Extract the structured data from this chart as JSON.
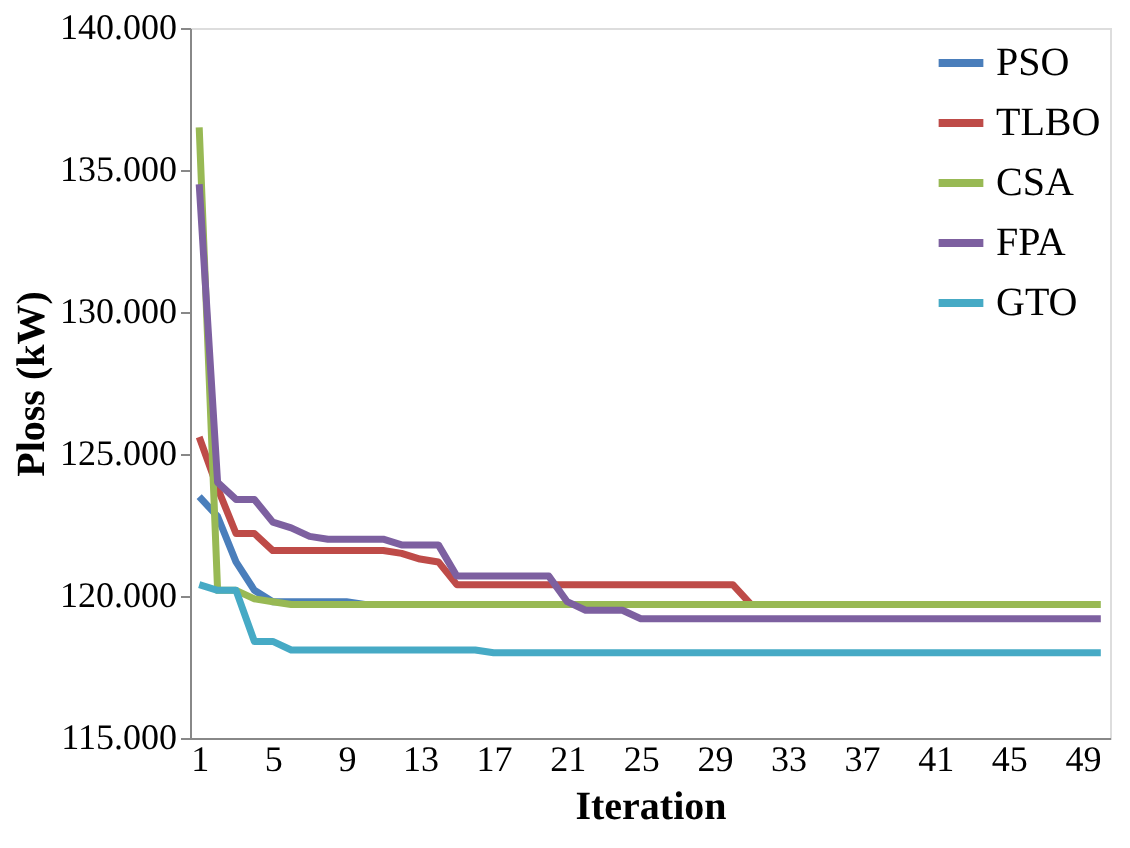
{
  "chart_data": {
    "type": "line",
    "xlabel": "Iteration",
    "ylabel": "Ploss (kW)",
    "categories": [
      "1",
      null,
      null,
      null,
      "5",
      null,
      null,
      null,
      "9",
      null,
      null,
      null,
      "13",
      null,
      null,
      null,
      "17",
      null,
      null,
      null,
      "21",
      null,
      null,
      null,
      "25",
      null,
      null,
      null,
      "29",
      null,
      null,
      null,
      "33",
      null,
      null,
      null,
      "37",
      null,
      null,
      null,
      "41",
      null,
      null,
      null,
      "45",
      null,
      null,
      null,
      "49",
      null
    ],
    "ylim": [
      115,
      140
    ],
    "yticks": [
      {
        "value": 115,
        "label": "115.000"
      },
      {
        "value": 120,
        "label": "120.000"
      },
      {
        "value": 125,
        "label": "125.000"
      },
      {
        "value": 130,
        "label": "130.000"
      },
      {
        "value": 135,
        "label": "135.000"
      },
      {
        "value": 140,
        "label": "140.000"
      }
    ],
    "grid": false,
    "legend": "top right",
    "marker": "none",
    "line_style": "solid",
    "series": [
      {
        "name": "PSO",
        "color": "#4a7ebb",
        "values": [
          123.5,
          122.8,
          121.2,
          120.2,
          119.8,
          119.8,
          119.8,
          119.8,
          119.8,
          119.7,
          null,
          null,
          null,
          null,
          null,
          null,
          null,
          null,
          null,
          null,
          null,
          null,
          null,
          null,
          null,
          null,
          null,
          null,
          null,
          null,
          null,
          null,
          null,
          null,
          null,
          null,
          null,
          null,
          null,
          null,
          null,
          null,
          null,
          null,
          null,
          null,
          null,
          null,
          null,
          null
        ]
      },
      {
        "name": "TLBO",
        "color": "#be4b48",
        "values": [
          125.6,
          123.8,
          122.2,
          122.2,
          121.6,
          121.6,
          121.6,
          121.6,
          121.6,
          121.6,
          121.6,
          121.5,
          121.3,
          121.2,
          120.4,
          120.4,
          120.4,
          120.4,
          120.4,
          120.4,
          120.4,
          120.4,
          120.4,
          120.4,
          120.4,
          120.4,
          120.4,
          120.4,
          120.4,
          120.4,
          119.7,
          null,
          null,
          null,
          null,
          null,
          null,
          null,
          null,
          null,
          null,
          null,
          null,
          null,
          null,
          null,
          null,
          null,
          null,
          null
        ]
      },
      {
        "name": "CSA",
        "color": "#98b954",
        "values": [
          136.5,
          120.2,
          120.2,
          119.9,
          119.8,
          119.7,
          119.7,
          119.7,
          119.7,
          119.7,
          119.7,
          119.7,
          119.7,
          119.7,
          119.7,
          119.7,
          119.7,
          119.7,
          119.7,
          119.7,
          119.7,
          119.7,
          119.7,
          119.7,
          119.7,
          119.7,
          119.7,
          119.7,
          119.7,
          119.7,
          119.7,
          119.7,
          119.7,
          119.7,
          119.7,
          119.7,
          119.7,
          119.7,
          119.7,
          119.7,
          119.7,
          119.7,
          119.7,
          119.7,
          119.7,
          119.7,
          119.7,
          119.7,
          119.7,
          119.7
        ]
      },
      {
        "name": "FPA",
        "color": "#7d60a0",
        "values": [
          134.5,
          124.0,
          123.4,
          123.4,
          122.6,
          122.4,
          122.1,
          122.0,
          122.0,
          122.0,
          122.0,
          121.8,
          121.8,
          121.8,
          120.7,
          120.7,
          120.7,
          120.7,
          120.7,
          120.7,
          119.8,
          119.5,
          119.5,
          119.5,
          119.2,
          119.2,
          119.2,
          119.2,
          119.2,
          119.2,
          119.2,
          119.2,
          119.2,
          119.2,
          119.2,
          119.2,
          119.2,
          119.2,
          119.2,
          119.2,
          119.2,
          119.2,
          119.2,
          119.2,
          119.2,
          119.2,
          119.2,
          119.2,
          119.2,
          119.2
        ]
      },
      {
        "name": "GTO",
        "color": "#46aac5",
        "values": [
          120.4,
          120.2,
          120.2,
          118.4,
          118.4,
          118.1,
          118.1,
          118.1,
          118.1,
          118.1,
          118.1,
          118.1,
          118.1,
          118.1,
          118.1,
          118.1,
          118.0,
          118.0,
          118.0,
          118.0,
          118.0,
          118.0,
          118.0,
          118.0,
          118.0,
          118.0,
          118.0,
          118.0,
          118.0,
          118.0,
          118.0,
          118.0,
          118.0,
          118.0,
          118.0,
          118.0,
          118.0,
          118.0,
          118.0,
          118.0,
          118.0,
          118.0,
          118.0,
          118.0,
          118.0,
          118.0,
          118.0,
          118.0,
          118.0,
          118.0
        ]
      }
    ]
  }
}
